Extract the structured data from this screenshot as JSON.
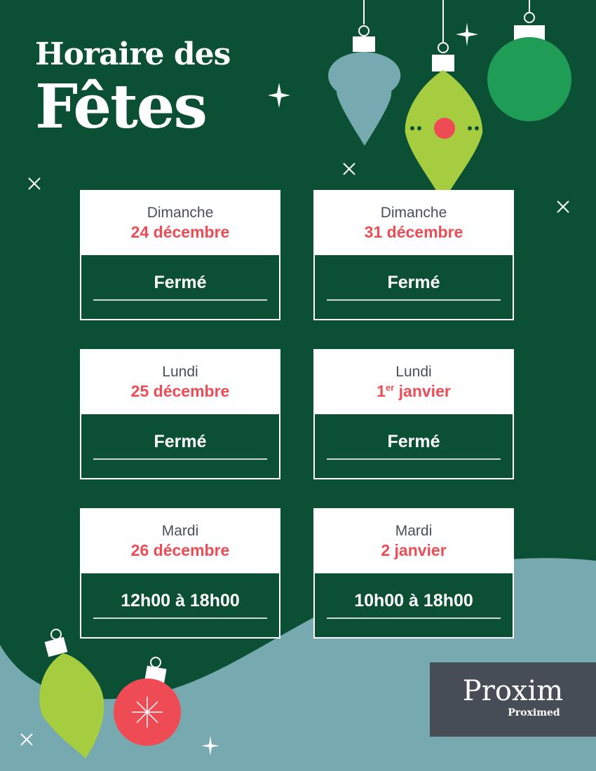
{
  "title": {
    "line1": "Horaire des",
    "line2": "Fêtes"
  },
  "schedule": [
    {
      "day": "Dimanche",
      "date": "24 décembre",
      "hours": "Fermé"
    },
    {
      "day": "Dimanche",
      "date": "31 décembre",
      "hours": "Fermé"
    },
    {
      "day": "Lundi",
      "date": "25 décembre",
      "hours": "Fermé"
    },
    {
      "day": "Lundi",
      "date_num": "1",
      "date_sup": "er",
      "date_rest": " janvier",
      "hours": "Fermé"
    },
    {
      "day": "Mardi",
      "date": "26 décembre",
      "hours": "12h00 à 18h00"
    },
    {
      "day": "Mardi",
      "date": "2 janvier",
      "hours": "10h00 à 18h00"
    }
  ],
  "logo": {
    "brand": "Proxim",
    "sub_brand": "Proximed"
  },
  "colors": {
    "background": "#0b5034",
    "accent_red": "#ef4b55",
    "teal": "#76a9b0",
    "lime": "#a6cd3f",
    "logo_box": "#474d57"
  }
}
